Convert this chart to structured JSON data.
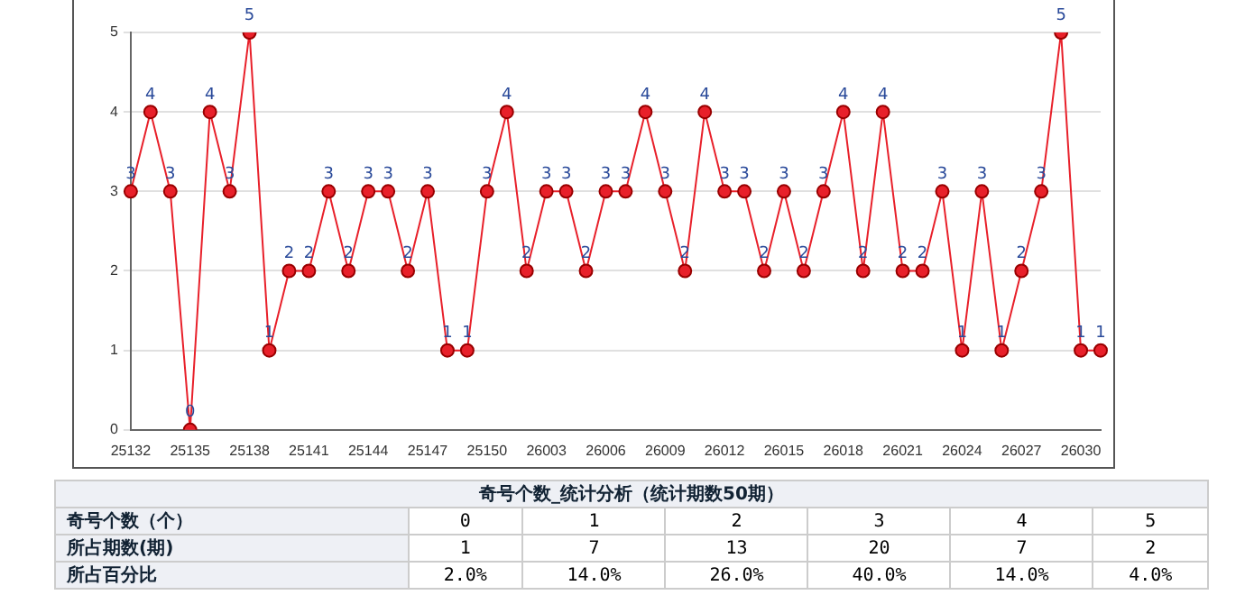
{
  "chart_data": {
    "type": "line",
    "categories": [
      "25132",
      null,
      null,
      "25135",
      null,
      null,
      "25138",
      null,
      null,
      "25141",
      null,
      null,
      "25144",
      null,
      null,
      "25147",
      null,
      null,
      "25150",
      null,
      null,
      "26003",
      null,
      null,
      "26006",
      null,
      null,
      "26009",
      null,
      null,
      "26012",
      null,
      null,
      "26015",
      null,
      null,
      "26018",
      null,
      null,
      "26021",
      null,
      null,
      "26024",
      null,
      null,
      "26027",
      null,
      null,
      "26030",
      null
    ],
    "series": [
      {
        "color": "#e8202a",
        "values": [
          3,
          4,
          3,
          0,
          4,
          3,
          5,
          1,
          2,
          2,
          3,
          2,
          3,
          3,
          2,
          3,
          1,
          1,
          3,
          4,
          2,
          3,
          3,
          2,
          3,
          3,
          4,
          3,
          2,
          4,
          3,
          3,
          2,
          3,
          2,
          3,
          4,
          2,
          4,
          2,
          2,
          3,
          1,
          3,
          1,
          2,
          3,
          5,
          1,
          1
        ]
      }
    ],
    "ylim": [
      0,
      5
    ],
    "yticks": [
      0,
      1,
      2,
      3,
      4,
      5
    ],
    "grid": "y",
    "marker": "circle",
    "data_labels": true,
    "legend": false,
    "annotations": [
      "奇号个数_统计分析（统计期数50期）",
      "奇号个数（个）",
      "0",
      "1",
      "2",
      "3",
      "4",
      "5",
      "所占期数(期)",
      "1",
      "7",
      "13",
      "20",
      "7",
      "2",
      "所占百分比",
      "2.0%",
      "14.0%",
      "26.0%",
      "40.0%",
      "14.0%",
      "4.0%"
    ]
  }
}
